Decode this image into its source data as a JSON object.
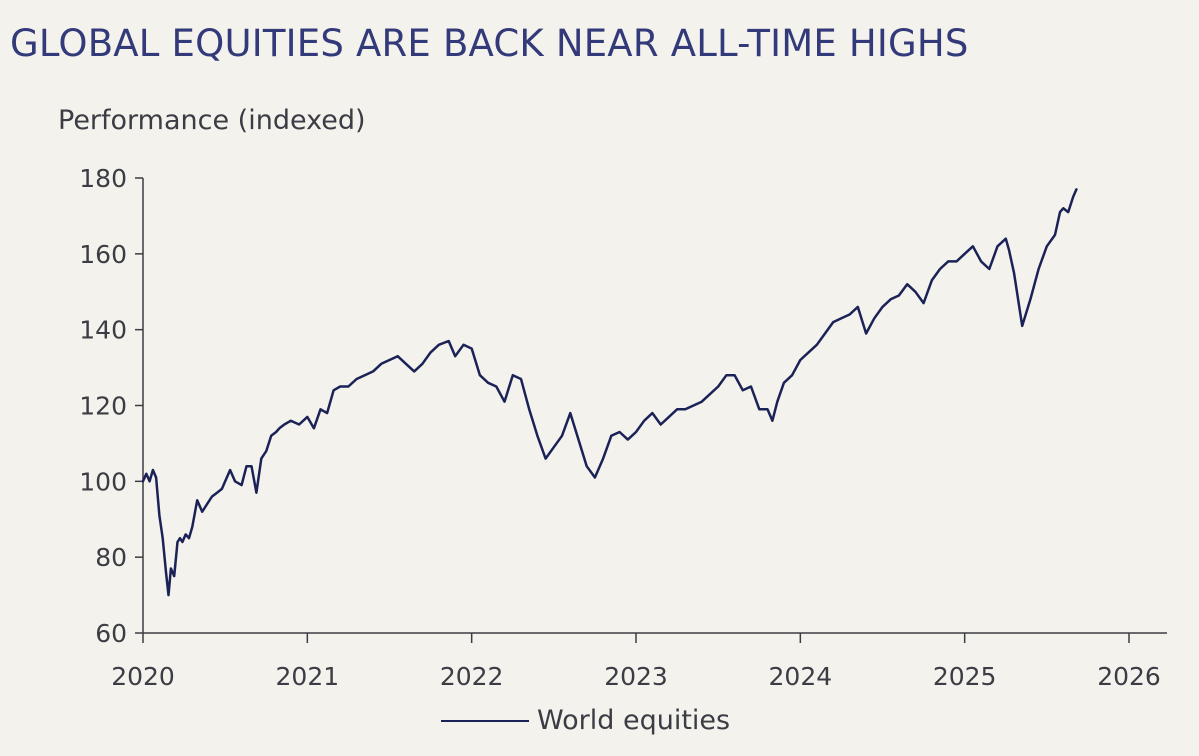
{
  "chart_data": {
    "type": "line",
    "title": "GLOBAL EQUITIES ARE BACK NEAR ALL-TIME HIGHS",
    "ylabel": "Performance (indexed)",
    "xlabel": "",
    "xlim": [
      2020,
      2026
    ],
    "ylim": [
      60,
      180
    ],
    "xticks": [
      "2020",
      "2021",
      "2022",
      "2023",
      "2024",
      "2025",
      "2026"
    ],
    "yticks": [
      "60",
      "80",
      "100",
      "120",
      "140",
      "160",
      "180"
    ],
    "grid": false,
    "legend_position": "bottom-center",
    "series": [
      {
        "name": "World equities",
        "color": "#1b2257",
        "x": [
          2020.0,
          2020.02,
          2020.04,
          2020.06,
          2020.08,
          2020.1,
          2020.12,
          2020.14,
          2020.155,
          2020.17,
          2020.19,
          2020.21,
          2020.225,
          2020.24,
          2020.26,
          2020.28,
          2020.3,
          2020.33,
          2020.36,
          2020.39,
          2020.42,
          2020.45,
          2020.48,
          2020.5,
          2020.53,
          2020.56,
          2020.6,
          2020.63,
          2020.66,
          2020.69,
          2020.72,
          2020.75,
          2020.78,
          2020.81,
          2020.83,
          2020.86,
          2020.9,
          2020.95,
          2021.0,
          2021.04,
          2021.08,
          2021.12,
          2021.16,
          2021.2,
          2021.25,
          2021.3,
          2021.35,
          2021.4,
          2021.45,
          2021.5,
          2021.55,
          2021.6,
          2021.65,
          2021.7,
          2021.75,
          2021.8,
          2021.86,
          2021.9,
          2021.95,
          2022.0,
          2022.05,
          2022.1,
          2022.15,
          2022.2,
          2022.25,
          2022.3,
          2022.35,
          2022.4,
          2022.45,
          2022.5,
          2022.55,
          2022.6,
          2022.65,
          2022.7,
          2022.75,
          2022.8,
          2022.85,
          2022.9,
          2022.95,
          2023.0,
          2023.05,
          2023.1,
          2023.15,
          2023.2,
          2023.25,
          2023.3,
          2023.35,
          2023.4,
          2023.45,
          2023.5,
          2023.55,
          2023.6,
          2023.65,
          2023.7,
          2023.75,
          2023.8,
          2023.83,
          2023.86,
          2023.9,
          2023.95,
          2024.0,
          2024.05,
          2024.1,
          2024.15,
          2024.2,
          2024.25,
          2024.3,
          2024.35,
          2024.4,
          2024.45,
          2024.5,
          2024.55,
          2024.6,
          2024.65,
          2024.7,
          2024.75,
          2024.8,
          2024.85,
          2024.9,
          2024.95,
          2025.0,
          2025.05,
          2025.1,
          2025.15,
          2025.2,
          2025.25,
          2025.27,
          2025.3,
          2025.35,
          2025.4,
          2025.45,
          2025.5,
          2025.55,
          2025.58,
          2025.6,
          2025.63,
          2025.66,
          2025.68
        ],
        "values": [
          100,
          102,
          100,
          103,
          101,
          91,
          85,
          76,
          70,
          77,
          75,
          84,
          85,
          84,
          86,
          85,
          88,
          95,
          92,
          94,
          96,
          97,
          98,
          100,
          103,
          100,
          99,
          104,
          104,
          97,
          106,
          108,
          112,
          113,
          114,
          115,
          116,
          115,
          117,
          114,
          119,
          118,
          124,
          125,
          125,
          127,
          128,
          129,
          131,
          132,
          133,
          131,
          129,
          131,
          134,
          136,
          137,
          133,
          136,
          135,
          128,
          126,
          125,
          121,
          128,
          127,
          119,
          112,
          106,
          109,
          112,
          118,
          111,
          104,
          101,
          106,
          112,
          113,
          111,
          113,
          116,
          118,
          115,
          117,
          119,
          119,
          120,
          121,
          123,
          125,
          128,
          128,
          124,
          125,
          119,
          119,
          116,
          121,
          126,
          128,
          132,
          134,
          136,
          139,
          142,
          143,
          144,
          146,
          139,
          143,
          146,
          148,
          149,
          152,
          150,
          147,
          153,
          156,
          158,
          158,
          160,
          162,
          158,
          156,
          162,
          164,
          161,
          155,
          141,
          148,
          156,
          162,
          165,
          171,
          172,
          171,
          175,
          177
        ]
      }
    ]
  }
}
